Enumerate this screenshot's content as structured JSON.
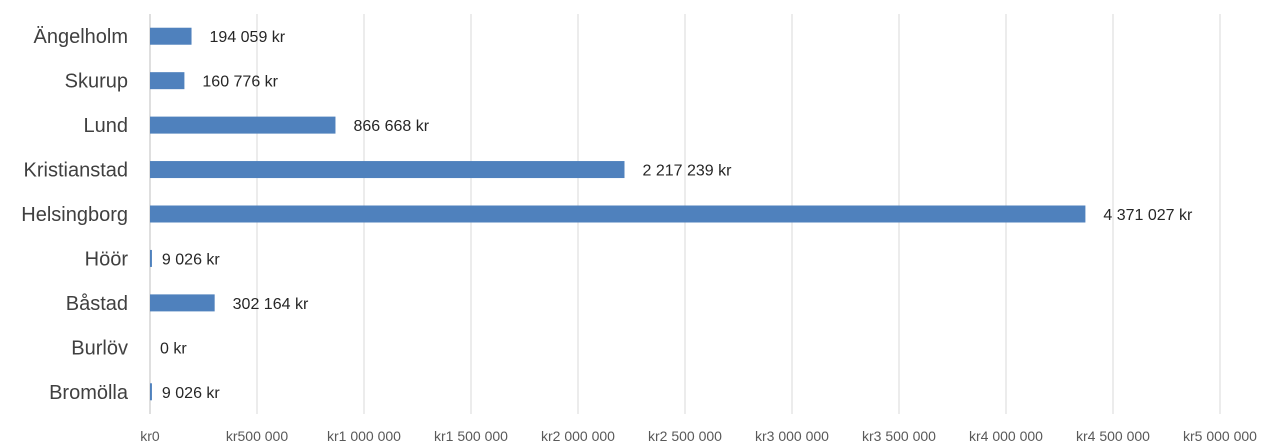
{
  "chart_data": {
    "type": "bar",
    "orientation": "horizontal",
    "categories": [
      "Ängelholm",
      "Skurup",
      "Lund",
      "Kristianstad",
      "Helsingborg",
      "Höör",
      "Båstad",
      "Burlöv",
      "Bromölla"
    ],
    "values": [
      194059,
      160776,
      866668,
      2217239,
      4371027,
      9026,
      302164,
      0,
      9026
    ],
    "data_labels": [
      "194 059 kr",
      "160 776 kr",
      "866 668 kr",
      "2 217 239 kr",
      "4 371 027 kr",
      "9 026 kr",
      "302 164 kr",
      "0 kr",
      "9 026 kr"
    ],
    "xlim": [
      0,
      5000000
    ],
    "xticks": [
      0,
      500000,
      1000000,
      1500000,
      2000000,
      2500000,
      3000000,
      3500000,
      4000000,
      4500000,
      5000000
    ],
    "xtick_labels": [
      "kr0",
      "kr500 000",
      "kr1 000 000",
      "kr1 500 000",
      "kr2 000 000",
      "kr2 500 000",
      "kr3 000 000",
      "kr3 500 000",
      "kr4 000 000",
      "kr4 500 000",
      "kr5 000 000"
    ],
    "grid": true,
    "bar_color": "#4f81bd",
    "title": "",
    "xlabel": "",
    "ylabel": ""
  }
}
